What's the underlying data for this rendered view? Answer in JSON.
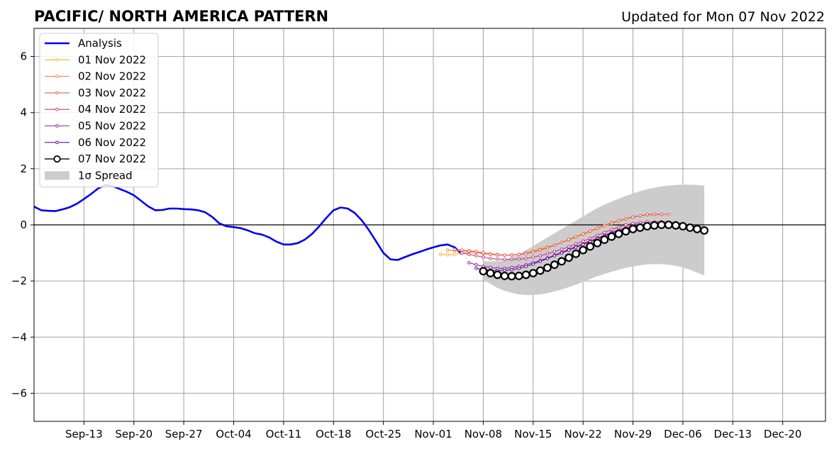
{
  "chart_data": {
    "type": "line",
    "title": "PACIFIC/ NORTH AMERICA PATTERN",
    "subtitle": "Updated for Mon 07 Nov 2022",
    "xlabel": "",
    "ylabel": "",
    "x_range": [
      "2022-09-06",
      "2022-12-26"
    ],
    "ylim": [
      -7,
      7
    ],
    "y_ticks": [
      -6,
      -4,
      -2,
      0,
      2,
      4,
      6
    ],
    "y_tick_labels": [
      "−6",
      "−4",
      "−2",
      "0",
      "2",
      "4",
      "6"
    ],
    "x_ticks": [
      "2022-09-13",
      "2022-09-20",
      "2022-09-27",
      "2022-10-04",
      "2022-10-11",
      "2022-10-18",
      "2022-10-25",
      "2022-11-01",
      "2022-11-08",
      "2022-11-15",
      "2022-11-22",
      "2022-11-29",
      "2022-12-06",
      "2022-12-13",
      "2022-12-20"
    ],
    "x_tick_labels": [
      "Sep-13",
      "Sep-20",
      "Sep-27",
      "Oct-04",
      "Oct-11",
      "Oct-18",
      "Oct-25",
      "Nov-01",
      "Nov-08",
      "Nov-15",
      "Nov-22",
      "Nov-29",
      "Dec-06",
      "Dec-13",
      "Dec-20"
    ],
    "grid": true,
    "legend_position": "top-left",
    "zero_line": true,
    "analysis": {
      "name": "Analysis",
      "color": "#0000ee",
      "start": "2022-09-06",
      "values": [
        0.65,
        0.52,
        0.5,
        0.49,
        0.55,
        0.63,
        0.75,
        0.92,
        1.1,
        1.3,
        1.42,
        1.38,
        1.28,
        1.18,
        1.05,
        0.86,
        0.66,
        0.52,
        0.53,
        0.58,
        0.58,
        0.56,
        0.55,
        0.52,
        0.45,
        0.28,
        0.05,
        -0.05,
        -0.08,
        -0.12,
        -0.2,
        -0.3,
        -0.35,
        -0.45,
        -0.6,
        -0.7,
        -0.7,
        -0.65,
        -0.52,
        -0.32,
        -0.05,
        0.25,
        0.52,
        0.62,
        0.58,
        0.42,
        0.15,
        -0.2,
        -0.6,
        -1.0,
        -1.23,
        -1.25,
        -1.15,
        -1.05,
        -0.97,
        -0.88,
        -0.8,
        -0.73,
        -0.7,
        -0.8,
        -1.05
      ]
    },
    "series": [
      {
        "name": "01 Nov 2022",
        "color": "#fbb32a",
        "start": "2022-11-02",
        "values": [
          -1.05,
          -1.07,
          -1.05,
          -1.0,
          -0.98,
          -0.98,
          -1.0,
          -1.02,
          -1.05,
          -1.08,
          -1.08,
          -1.05,
          -1.0,
          -0.92,
          -0.85,
          -0.78,
          -0.72,
          -0.63,
          -0.55,
          -0.45,
          -0.35,
          -0.25,
          -0.15,
          -0.05,
          0.05,
          0.13,
          0.2,
          0.27,
          0.32,
          0.35,
          0.36,
          0.36
        ]
      },
      {
        "name": "02 Nov 2022",
        "color": "#f5854b",
        "start": "2022-11-03",
        "values": [
          -0.9,
          -0.92,
          -0.92,
          -0.95,
          -0.98,
          -1.03,
          -1.05,
          -1.08,
          -1.08,
          -1.08,
          -1.05,
          -1.0,
          -0.95,
          -0.88,
          -0.8,
          -0.72,
          -0.63,
          -0.53,
          -0.42,
          -0.32,
          -0.22,
          -0.12,
          -0.02,
          0.08,
          0.15,
          0.22,
          0.28,
          0.32,
          0.36,
          0.37,
          0.37
        ]
      },
      {
        "name": "03 Nov 2022",
        "color": "#e55a66",
        "start": "2022-11-04",
        "values": [
          -0.88,
          -0.9,
          -0.92,
          -0.95,
          -1.0,
          -1.05,
          -1.07,
          -1.08,
          -1.07,
          -1.05,
          -1.02,
          -0.97,
          -0.9,
          -0.82,
          -0.73,
          -0.63,
          -0.52,
          -0.42,
          -0.32,
          -0.22,
          -0.12,
          -0.02,
          0.07,
          0.15,
          0.22,
          0.28,
          0.33,
          0.37,
          0.38,
          0.38,
          0.37
        ]
      },
      {
        "name": "04 Nov 2022",
        "color": "#c13c84",
        "start": "2022-11-05",
        "values": [
          -1.0,
          -1.05,
          -1.1,
          -1.15,
          -1.2,
          -1.22,
          -1.23,
          -1.23,
          -1.22,
          -1.2,
          -1.15,
          -1.1,
          -1.03,
          -0.95,
          -0.87,
          -0.78,
          -0.68,
          -0.58,
          -0.48,
          -0.37,
          -0.27,
          -0.17,
          -0.08,
          0.0,
          0.05,
          0.08,
          0.1,
          0.11,
          0.11,
          0.1,
          0.08,
          0.05
        ]
      },
      {
        "name": "05 Nov 2022",
        "color": "#9a1fa3",
        "start": "2022-11-06",
        "values": [
          -1.35,
          -1.42,
          -1.48,
          -1.52,
          -1.55,
          -1.55,
          -1.52,
          -1.48,
          -1.42,
          -1.35,
          -1.27,
          -1.18,
          -1.08,
          -0.98,
          -0.87,
          -0.77,
          -0.67,
          -0.57,
          -0.47,
          -0.37,
          -0.27,
          -0.18,
          -0.1,
          -0.04,
          0.0,
          0.02,
          0.02,
          0.0,
          -0.03,
          -0.07,
          -0.12
        ]
      },
      {
        "name": "06 Nov 2022",
        "color": "#5c0d9c",
        "start": "2022-11-07",
        "values": [
          -1.55,
          -1.6,
          -1.62,
          -1.63,
          -1.62,
          -1.6,
          -1.55,
          -1.48,
          -1.4,
          -1.3,
          -1.2,
          -1.1,
          -1.0,
          -0.9,
          -0.8,
          -0.7,
          -0.6,
          -0.5,
          -0.4,
          -0.3,
          -0.22,
          -0.15,
          -0.1,
          -0.05,
          -0.02,
          -0.01,
          -0.02,
          -0.04,
          -0.07,
          -0.11,
          -0.15
        ]
      },
      {
        "name": "07 Nov 2022",
        "color": "#000000",
        "start": "2022-11-08",
        "values": [
          -1.65,
          -1.72,
          -1.78,
          -1.82,
          -1.83,
          -1.82,
          -1.78,
          -1.72,
          -1.63,
          -1.53,
          -1.42,
          -1.3,
          -1.17,
          -1.03,
          -0.9,
          -0.77,
          -0.65,
          -0.53,
          -0.42,
          -0.32,
          -0.23,
          -0.15,
          -0.1,
          -0.05,
          -0.02,
          0.0,
          0.0,
          -0.02,
          -0.05,
          -0.1,
          -0.15,
          -0.2
        ]
      }
    ],
    "spread": {
      "name": "1σ Spread",
      "color": "#cccccc",
      "start": "2022-11-08",
      "upper": [
        -1.3,
        -1.3,
        -1.3,
        -1.25,
        -1.15,
        -1.05,
        -0.9,
        -0.75,
        -0.6,
        -0.45,
        -0.3,
        -0.15,
        0.0,
        0.15,
        0.3,
        0.45,
        0.6,
        0.72,
        0.83,
        0.93,
        1.03,
        1.12,
        1.2,
        1.27,
        1.32,
        1.37,
        1.4,
        1.42,
        1.43,
        1.43,
        1.42,
        1.4
      ],
      "lower": [
        -1.95,
        -2.1,
        -2.25,
        -2.35,
        -2.42,
        -2.48,
        -2.5,
        -2.5,
        -2.48,
        -2.43,
        -2.37,
        -2.3,
        -2.22,
        -2.13,
        -2.03,
        -1.93,
        -1.83,
        -1.75,
        -1.67,
        -1.6,
        -1.53,
        -1.48,
        -1.44,
        -1.41,
        -1.4,
        -1.4,
        -1.42,
        -1.46,
        -1.52,
        -1.6,
        -1.7,
        -1.8
      ]
    },
    "legend": [
      {
        "label": "Analysis",
        "kind": "thick-line",
        "color": "#0000ee"
      },
      {
        "label": "01 Nov 2022",
        "kind": "small-marker",
        "color": "#fbb32a"
      },
      {
        "label": "02 Nov 2022",
        "kind": "small-marker",
        "color": "#f5854b"
      },
      {
        "label": "03 Nov 2022",
        "kind": "small-marker",
        "color": "#e55a66"
      },
      {
        "label": "04 Nov 2022",
        "kind": "small-marker",
        "color": "#c13c84"
      },
      {
        "label": "05 Nov 2022",
        "kind": "small-marker",
        "color": "#9a1fa3"
      },
      {
        "label": "06 Nov 2022",
        "kind": "small-marker",
        "color": "#5c0d9c"
      },
      {
        "label": "07 Nov 2022",
        "kind": "big-marker",
        "color": "#000000"
      },
      {
        "label": "1σ Spread",
        "kind": "patch",
        "color": "#cccccc"
      }
    ]
  }
}
